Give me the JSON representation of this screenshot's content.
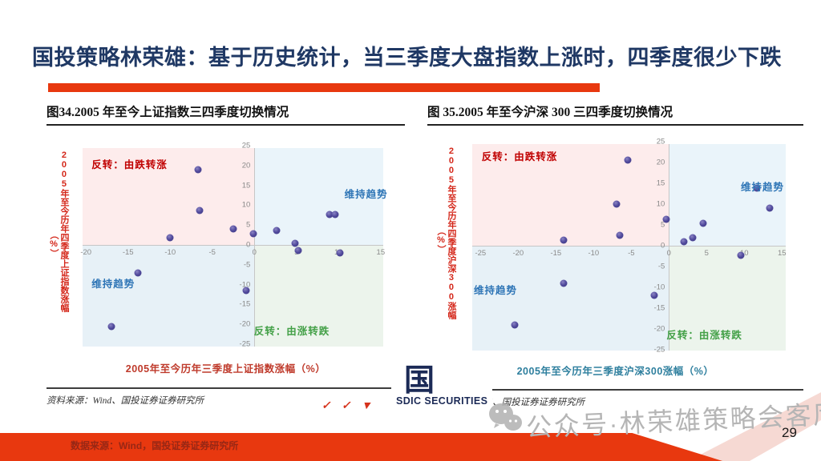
{
  "header": {
    "title": "国投策略林荣雄：基于历史统计，当三季度大盘指数上涨时，四季度很少下跌",
    "accent_color": "#e8380f"
  },
  "chart_data": [
    {
      "type": "scatter",
      "title": "图34.2005 年至今上证指数三四季度切换情况",
      "xlabel": "2005年至今历年三季度上证指数涨幅（%）",
      "xlabel_color": "#bf3a2b",
      "ylabel": "2005年至今历年四季度上证指数涨幅",
      "ylabel_unit": "（%）",
      "source": "资料来源：Wind、国投证券证券研究所",
      "xlim": [
        -20.4,
        15.3
      ],
      "ylim": [
        -25.6,
        24.4
      ],
      "xticks": [
        -20,
        -15,
        -10,
        -5,
        0,
        5,
        10,
        15
      ],
      "yticks": [
        25,
        20,
        15,
        10,
        5,
        0,
        -5,
        -10,
        -15,
        -20,
        -25
      ],
      "points": [
        [
          -6.7,
          19
        ],
        [
          -6.5,
          8.7
        ],
        [
          -10,
          1.8
        ],
        [
          -2.5,
          4
        ],
        [
          -0.1,
          2.8
        ],
        [
          2.6,
          3.7
        ],
        [
          4.8,
          0.5
        ],
        [
          5.2,
          -1.4
        ],
        [
          8.9,
          7.7
        ],
        [
          9.6,
          7.7
        ],
        [
          10.2,
          -2
        ],
        [
          -1,
          -11.5
        ],
        [
          -13.8,
          -7
        ],
        [
          -17,
          -20.5
        ]
      ],
      "point_color": "#514a9c",
      "quadrants": {
        "tl": {
          "label": "反转：由跌转涨",
          "bg": "#fdecec",
          "color": "#c00000"
        },
        "tr": {
          "label": "维持趋势",
          "bg": "#eaf4fa",
          "color": "#2e75b6"
        },
        "bl": {
          "label": "维持趋势",
          "bg": "#e7f1f7",
          "color": "#2e75b6"
        },
        "br": {
          "label": "反转：由涨转跌",
          "bg": "#ecf4ec",
          "color": "#43a047"
        }
      }
    },
    {
      "type": "scatter",
      "title": "图 35.2005 年至今沪深 300 三四季度切换情况",
      "xlabel": "2005年至今历年三季度沪深300涨幅（%）",
      "xlabel_color": "#2e7f9e",
      "ylabel": "2005年至今历年四季度沪深300涨幅",
      "ylabel_unit": "（%）",
      "source": "资料来源：Wind、国投证券证券研究所",
      "xlim": [
        -26.1,
        15.5
      ],
      "ylim": [
        -25.2,
        24.4
      ],
      "xticks": [
        -25,
        -20,
        -15,
        -10,
        -5,
        0,
        5,
        10,
        15
      ],
      "yticks": [
        25,
        20,
        15,
        10,
        5,
        0,
        -5,
        -10,
        -15,
        -20,
        -25
      ],
      "points": [
        [
          -5.5,
          20.5
        ],
        [
          -7,
          10
        ],
        [
          -6.5,
          2.5
        ],
        [
          -14,
          1.3
        ],
        [
          -0.3,
          6.3
        ],
        [
          2,
          1
        ],
        [
          3.2,
          2
        ],
        [
          4.5,
          5.3
        ],
        [
          11.7,
          13.8
        ],
        [
          13.4,
          9
        ],
        [
          9.5,
          -2.3
        ],
        [
          -14,
          -9
        ],
        [
          -2,
          -12
        ],
        [
          -20.5,
          -19
        ]
      ],
      "point_color": "#514a9c",
      "quadrants": {
        "tl": {
          "label": "反转：由跌转涨",
          "bg": "#fdecec",
          "color": "#c00000"
        },
        "tr": {
          "label": "维持趋势",
          "bg": "#eaf4fa",
          "color": "#2e75b6"
        },
        "bl": {
          "label": "维持趋势",
          "bg": "#e7f1f7",
          "color": "#2e75b6"
        },
        "br": {
          "label": "反转：由涨转跌",
          "bg": "#ecf4ec",
          "color": "#43a047"
        }
      }
    }
  ],
  "footer": {
    "logo_glyph": "国",
    "logo_sub": "SDIC SECURITIES",
    "marks": [
      "✓",
      "✓",
      "▼"
    ],
    "watermark": "公众号·林荣雄策略会客厅",
    "page_number": "29",
    "bottom_source": "数据来源：Wind，国投证券证券研究所"
  }
}
